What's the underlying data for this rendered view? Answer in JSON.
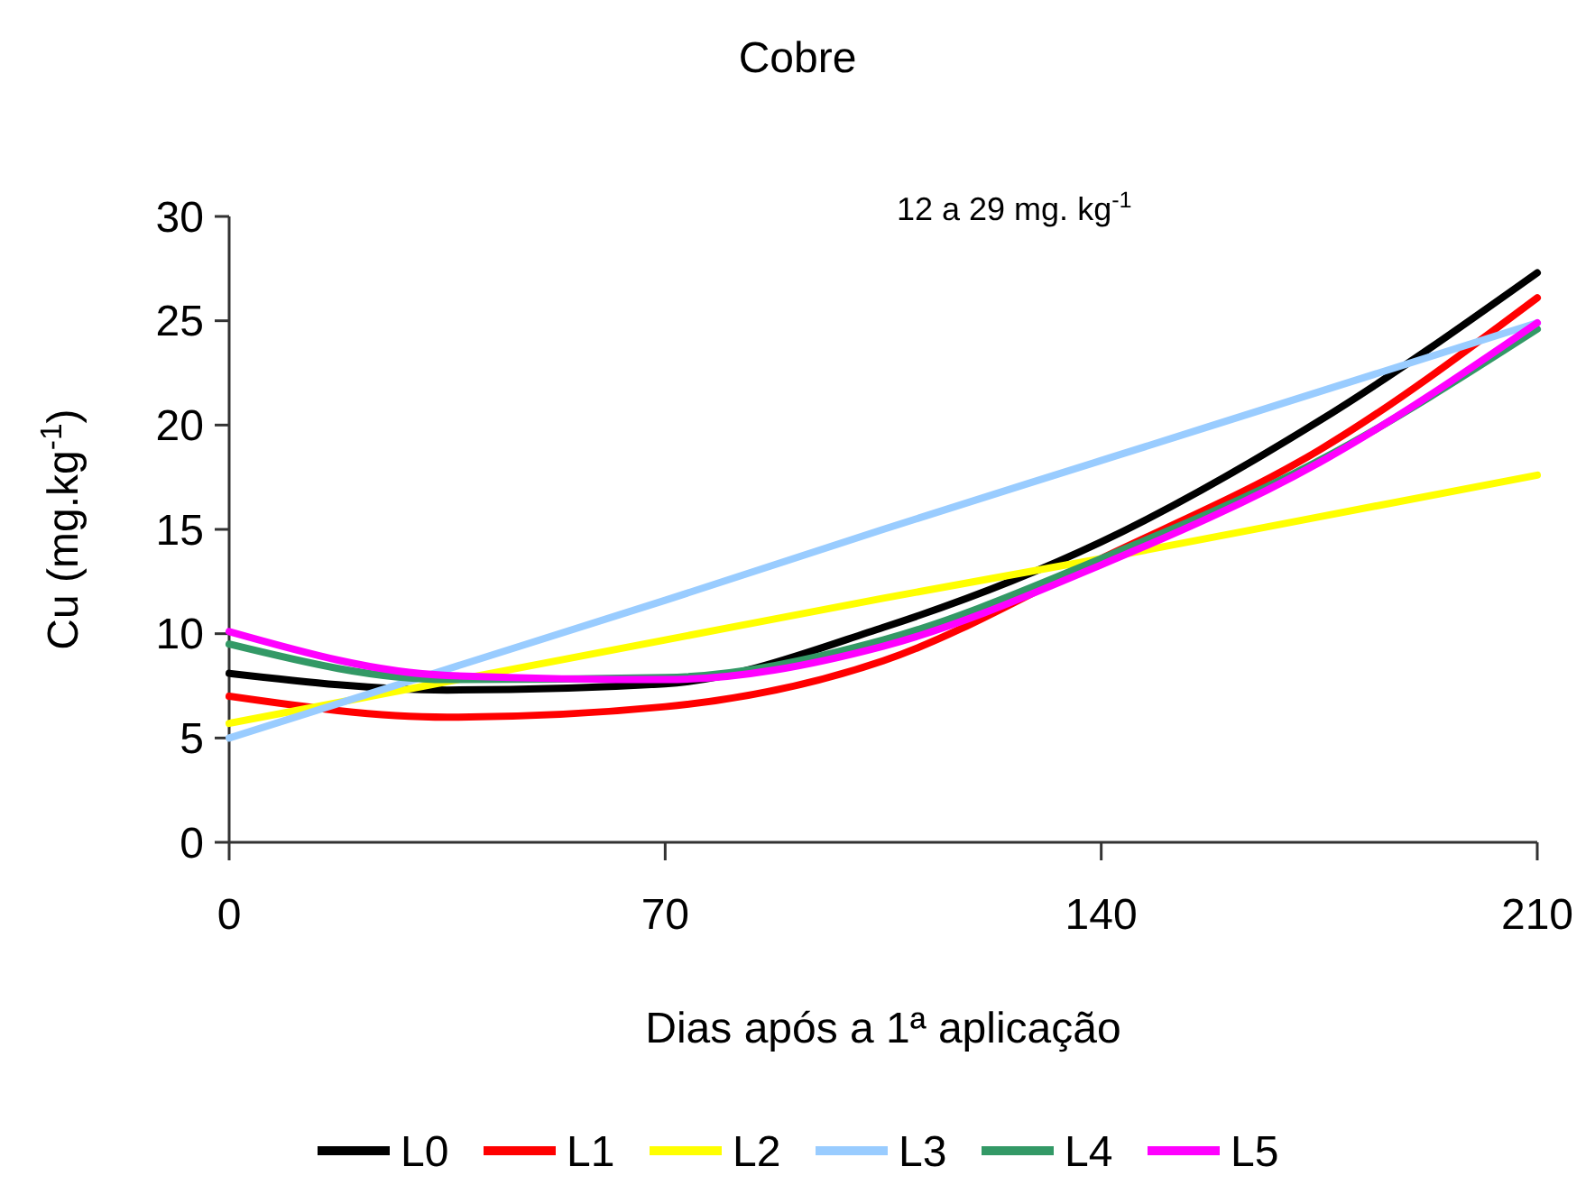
{
  "chart_data": {
    "type": "line",
    "title": "Cobre",
    "xlabel": "Dias após a 1ª aplicação",
    "ylabel": "Cu (mg.kg$^{-1}$)",
    "annotations": [
      "12 a  29 mg. kg$^{-1}$"
    ],
    "x": [
      0,
      35,
      70,
      105,
      140,
      175,
      210
    ],
    "xlim": [
      0,
      210
    ],
    "xticks": [
      0,
      70,
      140,
      210
    ],
    "ylim": [
      0,
      30
    ],
    "yticks": [
      0,
      5,
      10,
      15,
      20,
      25,
      30
    ],
    "grid": false,
    "legend": "bottom",
    "marker": "none",
    "line_style": "solid",
    "series": [
      {
        "name": "L0",
        "color": "#000000",
        "values": [
          8.1,
          7.3,
          7.6,
          10.3,
          14.4,
          20.2,
          27.3
        ]
      },
      {
        "name": "L1",
        "color": "#ff0000",
        "values": [
          7.0,
          6.0,
          6.5,
          8.7,
          13.6,
          18.8,
          26.1
        ]
      },
      {
        "name": "L2",
        "color": "#ffff00",
        "values": [
          5.7,
          7.7,
          9.7,
          11.7,
          13.6,
          15.6,
          17.6
        ]
      },
      {
        "name": "L3",
        "color": "#99ccff",
        "values": [
          5.0,
          8.3,
          11.6,
          15.0,
          18.3,
          21.6,
          24.9
        ]
      },
      {
        "name": "L4",
        "color": "#339966",
        "values": [
          9.5,
          7.8,
          7.9,
          9.7,
          13.6,
          18.3,
          24.6
        ]
      },
      {
        "name": "L5",
        "color": "#ff00ff",
        "values": [
          10.1,
          8.0,
          7.8,
          9.4,
          13.3,
          18.2,
          24.9
        ]
      }
    ]
  }
}
